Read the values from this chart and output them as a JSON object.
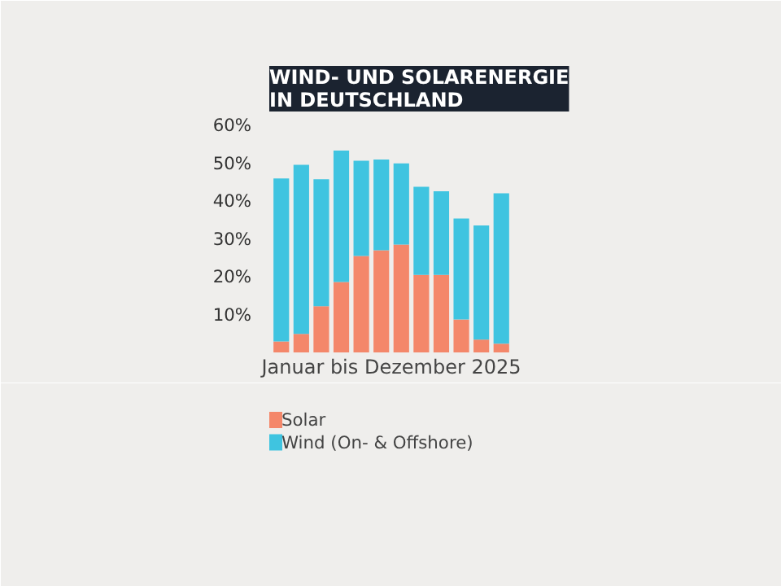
{
  "chart_data": {
    "type": "bar",
    "stacked": true,
    "title": "WIND- UND SOLARENERGIE\nIN DEUTSCHLAND",
    "xlabel": "Januar bis Dezember 2025",
    "categories": [
      null,
      null,
      null,
      null,
      null,
      null,
      null,
      null,
      null,
      null,
      null,
      null
    ],
    "series": [
      {
        "name": "Solar",
        "color": "#f4876a",
        "values": [
          2.9,
          4.9,
          12.2,
          18.6,
          25.5,
          27,
          28.5,
          20.5,
          20.5,
          8.7,
          3.4,
          2.3
        ]
      },
      {
        "name": "Wind (On- & Offshore)",
        "color": "#3fc4e0",
        "values": [
          43.1,
          44.7,
          33.6,
          34.8,
          25.2,
          24,
          21.5,
          23.3,
          22.1,
          26.7,
          30.2,
          39.8
        ]
      }
    ],
    "ylim": [
      0,
      62
    ],
    "yticks": [
      {
        "value": 10,
        "label": "10%"
      },
      {
        "value": 20,
        "label": "20%"
      },
      {
        "value": 30,
        "label": "30%"
      },
      {
        "value": 40,
        "label": "40%"
      },
      {
        "value": 50,
        "label": "50%"
      },
      {
        "value": 60,
        "label": "60%"
      }
    ],
    "grid": false,
    "legend": "bottom left",
    "tick_labels": "y"
  }
}
